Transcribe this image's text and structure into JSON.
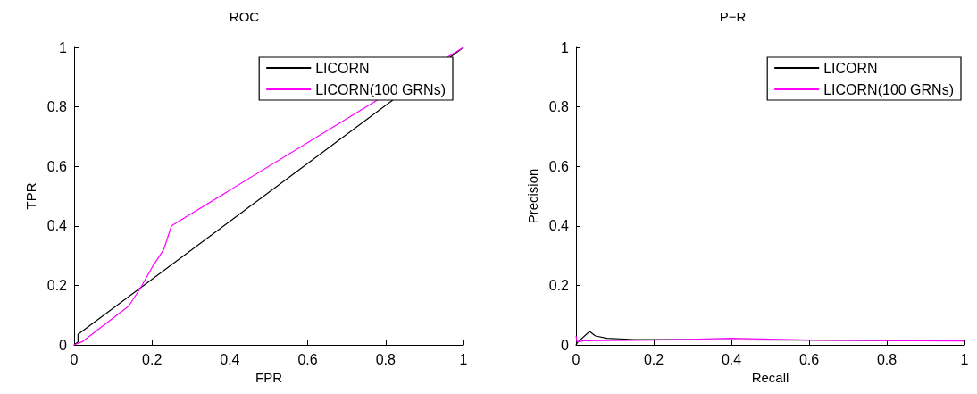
{
  "chart_data": [
    {
      "type": "line",
      "title": "ROC",
      "xlabel": "FPR",
      "ylabel": "TPR",
      "xlim": [
        0,
        1
      ],
      "ylim": [
        0,
        1
      ],
      "xticks": [
        0,
        0.2,
        0.4,
        0.6,
        0.8,
        1
      ],
      "yticks": [
        0,
        0.2,
        0.4,
        0.6,
        0.8,
        1
      ],
      "legend": "top right",
      "marker": "none",
      "line_style": "solid",
      "grid": false,
      "series": [
        {
          "name": "LICORN",
          "color": "#000000",
          "x": [
            0,
            0.01,
            0.01,
            1
          ],
          "values": [
            0,
            0.01,
            0.035,
            1
          ]
        },
        {
          "name": "LICORN(100 GRNs)",
          "color": "#ff00ff",
          "x": [
            0,
            0.02,
            0.05,
            0.1,
            0.14,
            0.17,
            0.2,
            0.23,
            0.245,
            0.25,
            1
          ],
          "values": [
            0,
            0.01,
            0.04,
            0.09,
            0.13,
            0.19,
            0.26,
            0.32,
            0.38,
            0.4,
            1
          ]
        }
      ]
    },
    {
      "type": "line",
      "title": "P−R",
      "xlabel": "Recall",
      "ylabel": "Precision",
      "xlim": [
        0,
        1
      ],
      "ylim": [
        0,
        1
      ],
      "xticks": [
        0,
        0.2,
        0.4,
        0.6,
        0.8,
        1
      ],
      "yticks": [
        0,
        0.2,
        0.4,
        0.6,
        0.8,
        1
      ],
      "legend": "top right",
      "marker": "none",
      "line_style": "solid",
      "grid": false,
      "series": [
        {
          "name": "LICORN",
          "color": "#000000",
          "x": [
            0,
            0.005,
            0.035,
            0.05,
            0.08,
            0.15,
            0.4,
            0.6,
            1
          ],
          "values": [
            0,
            0.01,
            0.045,
            0.03,
            0.022,
            0.018,
            0.017,
            0.016,
            0.014
          ]
        },
        {
          "name": "LICORN(100 GRNs)",
          "color": "#ff00ff",
          "x": [
            0,
            0.003,
            0.02,
            0.2,
            0.4,
            0.6,
            1
          ],
          "values": [
            0.03,
            0.01,
            0.014,
            0.016,
            0.022,
            0.016,
            0.013
          ]
        }
      ]
    }
  ]
}
